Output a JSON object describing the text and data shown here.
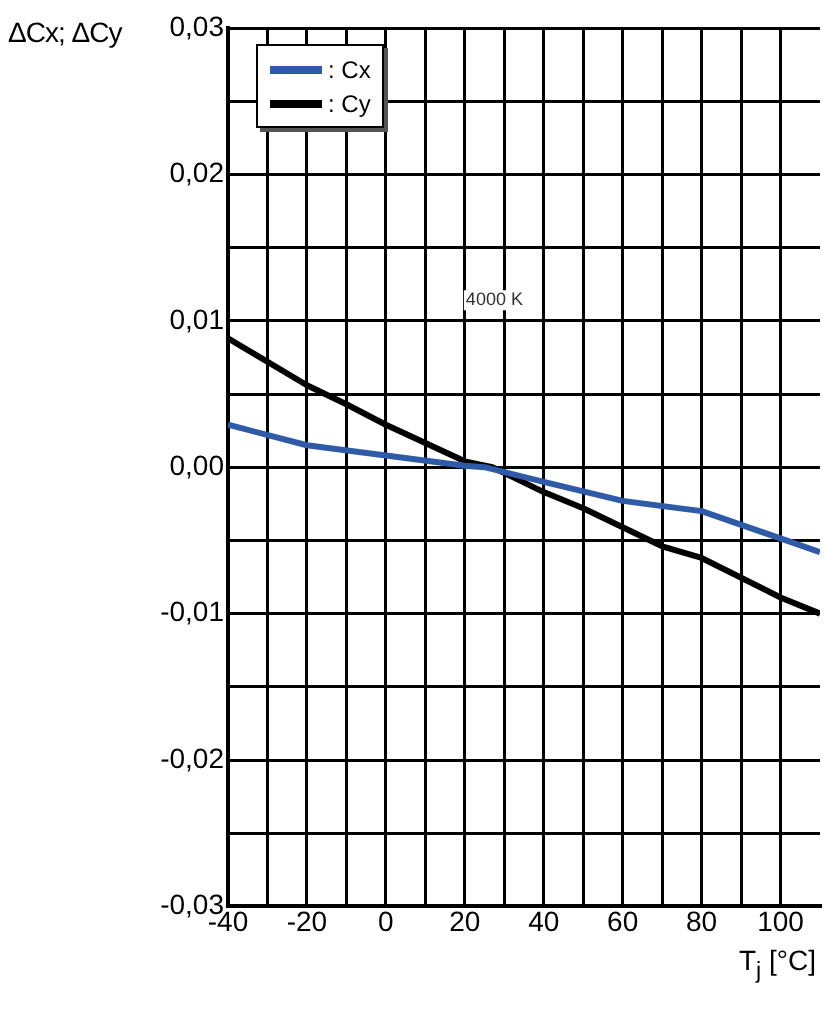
{
  "chart_data": {
    "type": "line",
    "xlabel": "T$_{j}$ [°C]",
    "ylabel": "ΔCx; ΔCy",
    "xlim": [
      -40,
      110
    ],
    "xticks": [
      -40,
      {
        "value": -30,
        "label": null
      },
      -20,
      {
        "value": -10,
        "label": null
      },
      0,
      {
        "value": 10,
        "label": null
      },
      20,
      {
        "value": 30,
        "label": null
      },
      40,
      {
        "value": 50,
        "label": null
      },
      60,
      {
        "value": 70,
        "label": null
      },
      80,
      {
        "value": 90,
        "label": null
      },
      100
    ],
    "ylim": [
      -0.03,
      0.03
    ],
    "yticks": [
      {
        "value": -0.03,
        "label": "-0,03"
      },
      {
        "value": -0.025,
        "label": null
      },
      {
        "value": -0.02,
        "label": "-0,02"
      },
      {
        "value": -0.015,
        "label": null
      },
      {
        "value": -0.01,
        "label": "-0,01"
      },
      {
        "value": -0.005,
        "label": null
      },
      {
        "value": 0,
        "label": "0,00"
      },
      {
        "value": 0.005,
        "label": null
      },
      {
        "value": 0.01,
        "label": "0,01"
      },
      {
        "value": 0.015,
        "label": null
      },
      {
        "value": 0.02,
        "label": "0,02"
      },
      {
        "value": 0.025,
        "label": null
      },
      {
        "value": 0.03,
        "label": "0,03"
      }
    ],
    "grid": true,
    "legend": "top left",
    "line_style": "solid",
    "annotations": [
      "4000 K"
    ],
    "series": [
      {
        "name": ": Cx",
        "color": "#2e5aa8",
        "x": [
          -40,
          -20,
          0,
          20,
          25,
          40,
          60,
          80,
          110
        ],
        "values": [
          0.0029,
          0.0015,
          0.0008,
          0.0001,
          0,
          -0.001,
          -0.0023,
          -0.003,
          -0.0058
        ]
      },
      {
        "name": ": Cy",
        "color": "#000000",
        "x": [
          -40,
          -20,
          -10,
          0,
          20,
          27,
          40,
          50,
          60,
          70,
          80,
          100,
          110
        ],
        "values": [
          0.0088,
          0.0056,
          0.0043,
          0.0029,
          0.0004,
          0,
          -0.0017,
          -0.0028,
          -0.0041,
          -0.0054,
          -0.0062,
          -0.0089,
          -0.01
        ]
      }
    ]
  }
}
